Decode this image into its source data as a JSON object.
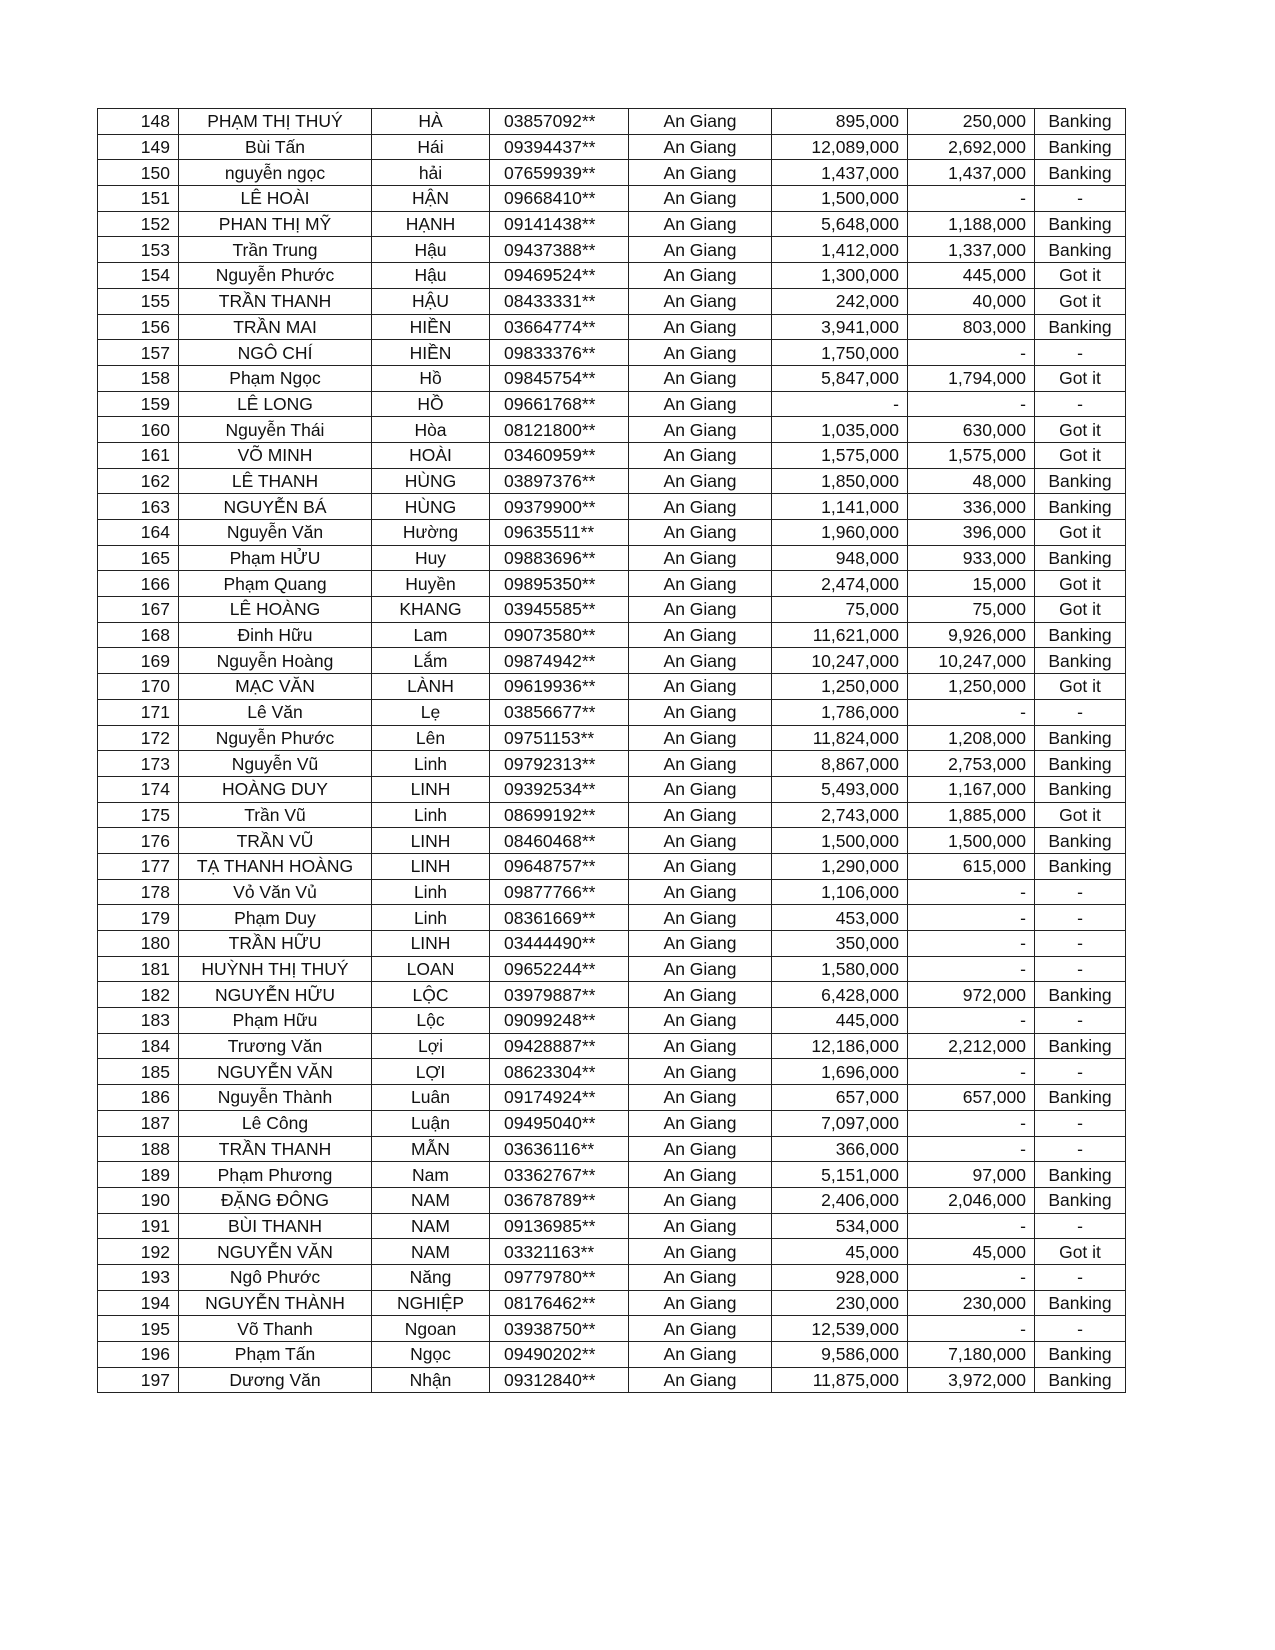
{
  "table": {
    "rows": [
      [
        "148",
        "PHẠM THỊ THUÝ",
        "HÀ",
        "03857092**",
        "An Giang",
        "895,000",
        "250,000",
        "Banking"
      ],
      [
        "149",
        "Bùi Tấn",
        "Hái",
        "09394437**",
        "An Giang",
        "12,089,000",
        "2,692,000",
        "Banking"
      ],
      [
        "150",
        "nguyễn ngọc",
        "hải",
        "07659939**",
        "An Giang",
        "1,437,000",
        "1,437,000",
        "Banking"
      ],
      [
        "151",
        "LÊ HOÀI",
        "HẬN",
        "09668410**",
        "An Giang",
        "1,500,000",
        "-",
        "-"
      ],
      [
        "152",
        "PHAN THỊ MỸ",
        "HẠNH",
        "09141438**",
        "An Giang",
        "5,648,000",
        "1,188,000",
        "Banking"
      ],
      [
        "153",
        "Trần Trung",
        "Hậu",
        "09437388**",
        "An Giang",
        "1,412,000",
        "1,337,000",
        "Banking"
      ],
      [
        "154",
        "Nguyễn Phước",
        "Hậu",
        "09469524**",
        "An Giang",
        "1,300,000",
        "445,000",
        "Got it"
      ],
      [
        "155",
        "TRẦN THANH",
        "HẬU",
        "08433331**",
        "An Giang",
        "242,000",
        "40,000",
        "Got it"
      ],
      [
        "156",
        "TRẦN MAI",
        "HIỀN",
        "03664774**",
        "An Giang",
        "3,941,000",
        "803,000",
        "Banking"
      ],
      [
        "157",
        "NGÔ CHÍ",
        "HIỀN",
        "09833376**",
        "An Giang",
        "1,750,000",
        "-",
        "-"
      ],
      [
        "158",
        "Phạm Ngọc",
        "Hồ",
        "09845754**",
        "An Giang",
        "5,847,000",
        "1,794,000",
        "Got it"
      ],
      [
        "159",
        "LÊ LONG",
        "HỒ",
        "09661768**",
        "An Giang",
        "-",
        "-",
        "-"
      ],
      [
        "160",
        "Nguyễn Thái",
        "Hòa",
        "08121800**",
        "An Giang",
        "1,035,000",
        "630,000",
        "Got it"
      ],
      [
        "161",
        "VÕ MINH",
        "HOÀI",
        "03460959**",
        "An Giang",
        "1,575,000",
        "1,575,000",
        "Got it"
      ],
      [
        "162",
        "LÊ THANH",
        "HÙNG",
        "03897376**",
        "An Giang",
        "1,850,000",
        "48,000",
        "Banking"
      ],
      [
        "163",
        "NGUYỄN BÁ",
        "HÙNG",
        "09379900**",
        "An Giang",
        "1,141,000",
        "336,000",
        "Banking"
      ],
      [
        "164",
        "Nguyễn  Văn",
        "Hường",
        "09635511**",
        "An Giang",
        "1,960,000",
        "396,000",
        "Got it"
      ],
      [
        "165",
        "Phạm HỬU",
        "Huy",
        "09883696**",
        "An Giang",
        "948,000",
        "933,000",
        "Banking"
      ],
      [
        "166",
        "Phạm Quang",
        "Huyền",
        "09895350**",
        "An Giang",
        "2,474,000",
        "15,000",
        "Got it"
      ],
      [
        "167",
        "LÊ HOÀNG",
        "KHANG",
        "03945585**",
        "An Giang",
        "75,000",
        "75,000",
        "Got it"
      ],
      [
        "168",
        "Đinh Hữu",
        "Lam",
        "09073580**",
        "An Giang",
        "11,621,000",
        "9,926,000",
        "Banking"
      ],
      [
        "169",
        "Nguyễn Hoàng",
        "Lắm",
        "09874942**",
        "An Giang",
        "10,247,000",
        "10,247,000",
        "Banking"
      ],
      [
        "170",
        "MẠC VĂN",
        "LÀNH",
        "09619936**",
        "An Giang",
        "1,250,000",
        "1,250,000",
        "Got it"
      ],
      [
        "171",
        "Lê Văn",
        "Lẹ",
        "03856677**",
        "An Giang",
        "1,786,000",
        "-",
        "-"
      ],
      [
        "172",
        "Nguyễn Phước",
        "Lên",
        "09751153**",
        "An Giang",
        "11,824,000",
        "1,208,000",
        "Banking"
      ],
      [
        "173",
        "Nguyễn Vũ",
        "Linh",
        "09792313**",
        "An Giang",
        "8,867,000",
        "2,753,000",
        "Banking"
      ],
      [
        "174",
        "HOÀNG DUY",
        "LINH",
        "09392534**",
        "An Giang",
        "5,493,000",
        "1,167,000",
        "Banking"
      ],
      [
        "175",
        "Trần Vũ",
        "Linh",
        "08699192**",
        "An Giang",
        "2,743,000",
        "1,885,000",
        "Got it"
      ],
      [
        "176",
        "TRẦN VŨ",
        "LINH",
        "08460468**",
        "An Giang",
        "1,500,000",
        "1,500,000",
        "Banking"
      ],
      [
        "177",
        "TẠ THANH HOÀNG",
        "LINH",
        "09648757**",
        "An Giang",
        "1,290,000",
        "615,000",
        "Banking"
      ],
      [
        "178",
        "Vỏ Văn Vủ",
        "Linh",
        "09877766**",
        "An Giang",
        "1,106,000",
        "-",
        "-"
      ],
      [
        "179",
        "Phạm Duy",
        "Linh",
        "08361669**",
        "An Giang",
        "453,000",
        "-",
        "-"
      ],
      [
        "180",
        "TRẦN HỮU",
        "LINH",
        "03444490**",
        "An Giang",
        "350,000",
        "-",
        "-"
      ],
      [
        "181",
        "HUỲNH THỊ THUÝ",
        "LOAN",
        "09652244**",
        "An Giang",
        "1,580,000",
        "-",
        "-"
      ],
      [
        "182",
        "NGUYỄN HỮU",
        "LỘC",
        "03979887**",
        "An Giang",
        "6,428,000",
        "972,000",
        "Banking"
      ],
      [
        "183",
        "Phạm Hữu",
        "Lộc",
        "09099248**",
        "An Giang",
        "445,000",
        "-",
        "-"
      ],
      [
        "184",
        "Trương Văn",
        "Lợi",
        "09428887**",
        "An Giang",
        "12,186,000",
        "2,212,000",
        "Banking"
      ],
      [
        "185",
        "NGUYỄN VĂN",
        "LỢI",
        "08623304**",
        "An Giang",
        "1,696,000",
        "-",
        "-"
      ],
      [
        "186",
        "Nguyễn Thành",
        "Luân",
        "09174924**",
        "An Giang",
        "657,000",
        "657,000",
        "Banking"
      ],
      [
        "187",
        "Lê Công",
        "Luận",
        "09495040**",
        "An Giang",
        "7,097,000",
        "-",
        "-"
      ],
      [
        "188",
        "TRẦN THANH",
        "MẪN",
        "03636116**",
        "An Giang",
        "366,000",
        "-",
        "-"
      ],
      [
        "189",
        "Phạm Phương",
        "Nam",
        "03362767**",
        "An Giang",
        "5,151,000",
        "97,000",
        "Banking"
      ],
      [
        "190",
        "ĐẶNG ĐÔNG",
        "NAM",
        "03678789**",
        "An Giang",
        "2,406,000",
        "2,046,000",
        "Banking"
      ],
      [
        "191",
        "BÙI THANH",
        "NAM",
        "09136985**",
        "An Giang",
        "534,000",
        "-",
        "-"
      ],
      [
        "192",
        "NGUYỄN VĂN",
        "NAM",
        "03321163**",
        "An Giang",
        "45,000",
        "45,000",
        "Got it"
      ],
      [
        "193",
        "Ngô Phước",
        "Năng",
        "09779780**",
        "An Giang",
        "928,000",
        "-",
        "-"
      ],
      [
        "194",
        "NGUYỄN THÀNH",
        "NGHIỆP",
        "08176462**",
        "An Giang",
        "230,000",
        "230,000",
        "Banking"
      ],
      [
        "195",
        "Võ Thanh",
        "Ngoan",
        "03938750**",
        "An Giang",
        "12,539,000",
        "-",
        "-"
      ],
      [
        "196",
        "Phạm Tấn",
        "Ngọc",
        "09490202**",
        "An Giang",
        "9,586,000",
        "7,180,000",
        "Banking"
      ],
      [
        "197",
        "Dương Văn",
        "Nhận",
        "09312840**",
        "An Giang",
        "11,875,000",
        "3,972,000",
        "Banking"
      ]
    ]
  }
}
